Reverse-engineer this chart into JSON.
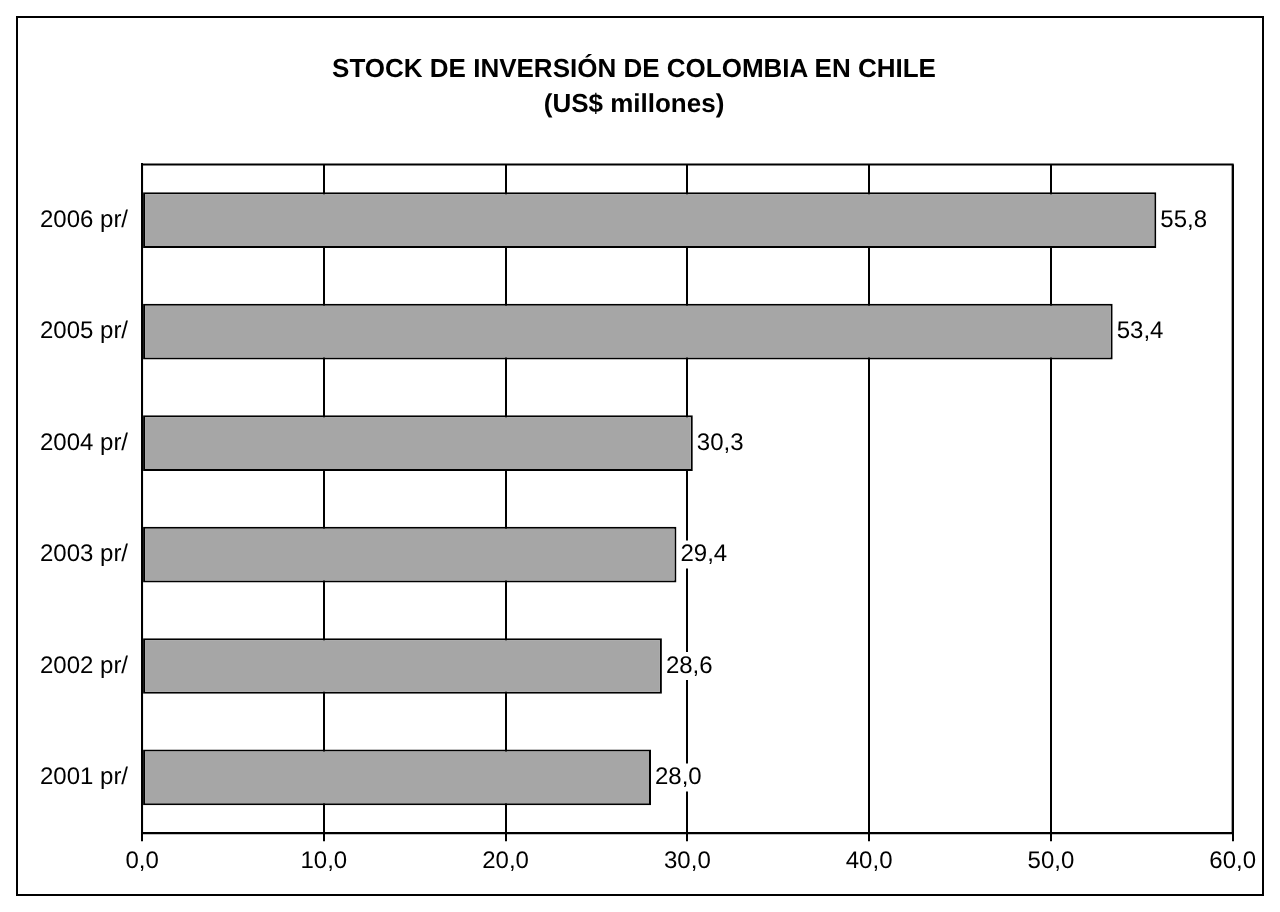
{
  "chart_data": {
    "type": "bar",
    "orientation": "horizontal",
    "title": "STOCK DE INVERSIÓN DE COLOMBIA EN CHILE",
    "subtitle": "(US$ millones)",
    "categories": [
      "2006 pr/",
      "2005 pr/",
      "2004 pr/",
      "2003 pr/",
      "2002 pr/",
      "2001 pr/"
    ],
    "values": [
      55.8,
      53.4,
      30.3,
      29.4,
      28.6,
      28.0
    ],
    "value_labels": [
      "55,8",
      "53,4",
      "30,3",
      "29,4",
      "28,6",
      "28,0"
    ],
    "color": "#a6a6a6",
    "xlim": [
      0,
      60
    ],
    "xticks": [
      {
        "value": 0,
        "label": "0,0"
      },
      {
        "value": 10,
        "label": "10,0"
      },
      {
        "value": 20,
        "label": "20,0"
      },
      {
        "value": 30,
        "label": "30,0"
      },
      {
        "value": 40,
        "label": "40,0"
      },
      {
        "value": 50,
        "label": "50,0"
      },
      {
        "value": 60,
        "label": "60,0"
      }
    ],
    "grid": "x",
    "legend": false
  }
}
